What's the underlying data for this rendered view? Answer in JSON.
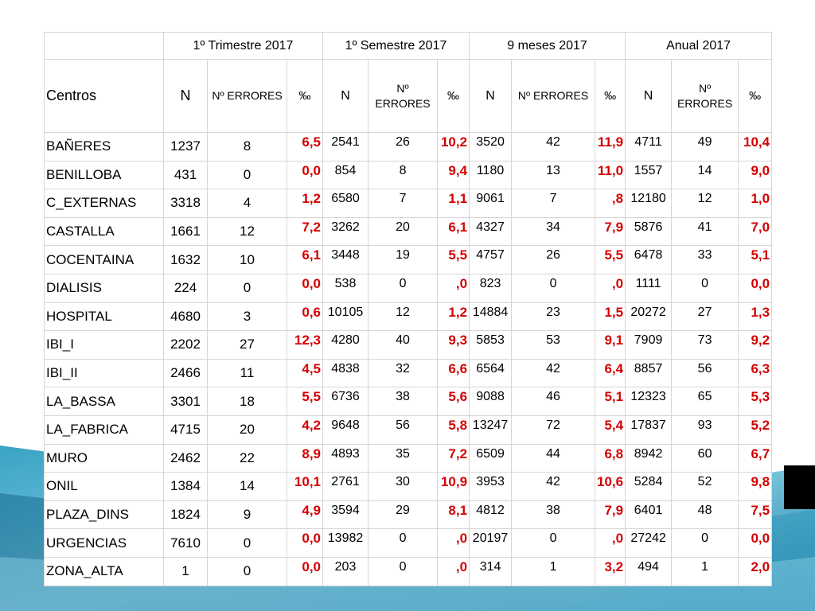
{
  "colors": {
    "highlight_value": "#d40000",
    "background_teal": "#2c8fb0"
  },
  "table": {
    "periods": [
      "1º Trimestre 2017",
      "1º Semestre 2017",
      "9 meses 2017",
      "Anual 2017"
    ],
    "centros_header": "Centros",
    "sub_headers": [
      "N",
      "Nº ERRORES",
      "‰"
    ],
    "rows": [
      {
        "centro": "BAÑERES",
        "values": [
          [
            "1237",
            "8",
            "6,5"
          ],
          [
            "2541",
            "26",
            "10,2"
          ],
          [
            "3520",
            "42",
            "11,9"
          ],
          [
            "4711",
            "49",
            "10,4"
          ]
        ]
      },
      {
        "centro": "BENILLOBA",
        "values": [
          [
            "431",
            "0",
            "0,0"
          ],
          [
            "854",
            "8",
            "9,4"
          ],
          [
            "1180",
            "13",
            "11,0"
          ],
          [
            "1557",
            "14",
            "9,0"
          ]
        ]
      },
      {
        "centro": "C_EXTERNAS",
        "values": [
          [
            "3318",
            "4",
            "1,2"
          ],
          [
            "6580",
            "7",
            "1,1"
          ],
          [
            "9061",
            "7",
            ",8"
          ],
          [
            "12180",
            "12",
            "1,0"
          ]
        ]
      },
      {
        "centro": "CASTALLA",
        "values": [
          [
            "1661",
            "12",
            "7,2"
          ],
          [
            "3262",
            "20",
            "6,1"
          ],
          [
            "4327",
            "34",
            "7,9"
          ],
          [
            "5876",
            "41",
            "7,0"
          ]
        ]
      },
      {
        "centro": "COCENTAINA",
        "values": [
          [
            "1632",
            "10",
            "6,1"
          ],
          [
            "3448",
            "19",
            "5,5"
          ],
          [
            "4757",
            "26",
            "5,5"
          ],
          [
            "6478",
            "33",
            "5,1"
          ]
        ]
      },
      {
        "centro": "DIALISIS",
        "values": [
          [
            "224",
            "0",
            "0,0"
          ],
          [
            "538",
            "0",
            ",0"
          ],
          [
            "823",
            "0",
            ",0"
          ],
          [
            "1111",
            "0",
            "0,0"
          ]
        ]
      },
      {
        "centro": "HOSPITAL",
        "values": [
          [
            "4680",
            "3",
            "0,6"
          ],
          [
            "10105",
            "12",
            "1,2"
          ],
          [
            "14884",
            "23",
            "1,5"
          ],
          [
            "20272",
            "27",
            "1,3"
          ]
        ]
      },
      {
        "centro": "IBI_I",
        "values": [
          [
            "2202",
            "27",
            "12,3"
          ],
          [
            "4280",
            "40",
            "9,3"
          ],
          [
            "5853",
            "53",
            "9,1"
          ],
          [
            "7909",
            "73",
            "9,2"
          ]
        ]
      },
      {
        "centro": "IBI_II",
        "values": [
          [
            "2466",
            "11",
            "4,5"
          ],
          [
            "4838",
            "32",
            "6,6"
          ],
          [
            "6564",
            "42",
            "6,4"
          ],
          [
            "8857",
            "56",
            "6,3"
          ]
        ]
      },
      {
        "centro": "LA_BASSA",
        "values": [
          [
            "3301",
            "18",
            "5,5"
          ],
          [
            "6736",
            "38",
            "5,6"
          ],
          [
            "9088",
            "46",
            "5,1"
          ],
          [
            "12323",
            "65",
            "5,3"
          ]
        ]
      },
      {
        "centro": "LA_FABRICA",
        "values": [
          [
            "4715",
            "20",
            "4,2"
          ],
          [
            "9648",
            "56",
            "5,8"
          ],
          [
            "13247",
            "72",
            "5,4"
          ],
          [
            "17837",
            "93",
            "5,2"
          ]
        ]
      },
      {
        "centro": "MURO",
        "values": [
          [
            "2462",
            "22",
            "8,9"
          ],
          [
            "4893",
            "35",
            "7,2"
          ],
          [
            "6509",
            "44",
            "6,8"
          ],
          [
            "8942",
            "60",
            "6,7"
          ]
        ]
      },
      {
        "centro": "ONIL",
        "values": [
          [
            "1384",
            "14",
            "10,1"
          ],
          [
            "2761",
            "30",
            "10,9"
          ],
          [
            "3953",
            "42",
            "10,6"
          ],
          [
            "5284",
            "52",
            "9,8"
          ]
        ]
      },
      {
        "centro": "PLAZA_DINS",
        "values": [
          [
            "1824",
            "9",
            "4,9"
          ],
          [
            "3594",
            "29",
            "8,1"
          ],
          [
            "4812",
            "38",
            "7,9"
          ],
          [
            "6401",
            "48",
            "7,5"
          ]
        ]
      },
      {
        "centro": "URGENCIAS",
        "values": [
          [
            "7610",
            "0",
            "0,0"
          ],
          [
            "13982",
            "0",
            ",0"
          ],
          [
            "20197",
            "0",
            ",0"
          ],
          [
            "27242",
            "0",
            "0,0"
          ]
        ]
      },
      {
        "centro": "ZONA_ALTA",
        "values": [
          [
            "1",
            "0",
            "0,0"
          ],
          [
            "203",
            "0",
            ",0"
          ],
          [
            "314",
            "1",
            "3,2"
          ],
          [
            "494",
            "1",
            "2,0"
          ]
        ]
      }
    ]
  }
}
